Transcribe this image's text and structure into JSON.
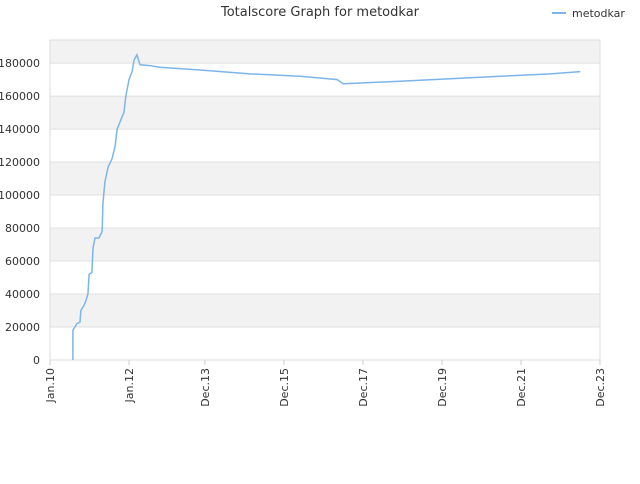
{
  "chart_data": {
    "type": "line",
    "title": "Totalscore Graph for metodkar",
    "legend": "top-right",
    "grid": true,
    "x": [
      2010.58,
      2010.58,
      2010.63,
      2010.68,
      2010.76,
      2010.78,
      2010.86,
      2010.91,
      2010.96,
      2010.99,
      2011.06,
      2011.09,
      2011.14,
      2011.24,
      2011.32,
      2011.34,
      2011.39,
      2011.47,
      2011.57,
      2011.65,
      2011.7,
      2011.8,
      2011.87,
      2011.92,
      2012.0,
      2012.08,
      2012.13,
      2012.2,
      2012.28,
      2012.53,
      2012.78,
      2013.8,
      2015.06,
      2016.33,
      2017.27,
      2017.42,
      2017.72,
      2018.86,
      2020.13,
      2021.39,
      2022.66,
      2023.42
    ],
    "series": [
      {
        "name": "metodkar",
        "color": "#7cb5ec",
        "values": [
          0,
          18000,
          20000,
          22000,
          23000,
          30000,
          33000,
          36000,
          40000,
          52000,
          53000,
          68000,
          74000,
          74000,
          78000,
          95000,
          108000,
          117000,
          122000,
          130000,
          140000,
          146000,
          150000,
          160000,
          170000,
          175000,
          182000,
          185000,
          179000,
          178500,
          177500,
          175800,
          173500,
          172000,
          170000,
          167500,
          167800,
          169000,
          170500,
          172000,
          173500,
          174800
        ]
      }
    ],
    "xlim": [
      2010.0,
      2023.92
    ],
    "xticks": [
      {
        "value": 2010.0,
        "label": "Jan.10"
      },
      {
        "value": 2012.0,
        "label": "Jan.12"
      },
      {
        "value": 2013.92,
        "label": "Dec.13"
      },
      {
        "value": 2015.92,
        "label": "Dec.15"
      },
      {
        "value": 2017.92,
        "label": "Dec.17"
      },
      {
        "value": 2019.92,
        "label": "Dec.19"
      },
      {
        "value": 2021.92,
        "label": "Dec.21"
      },
      {
        "value": 2023.92,
        "label": "Dec.23"
      }
    ],
    "ylim": [
      0,
      194000
    ],
    "yticks": [
      0,
      20000,
      40000,
      60000,
      80000,
      100000,
      120000,
      140000,
      160000,
      180000
    ]
  }
}
